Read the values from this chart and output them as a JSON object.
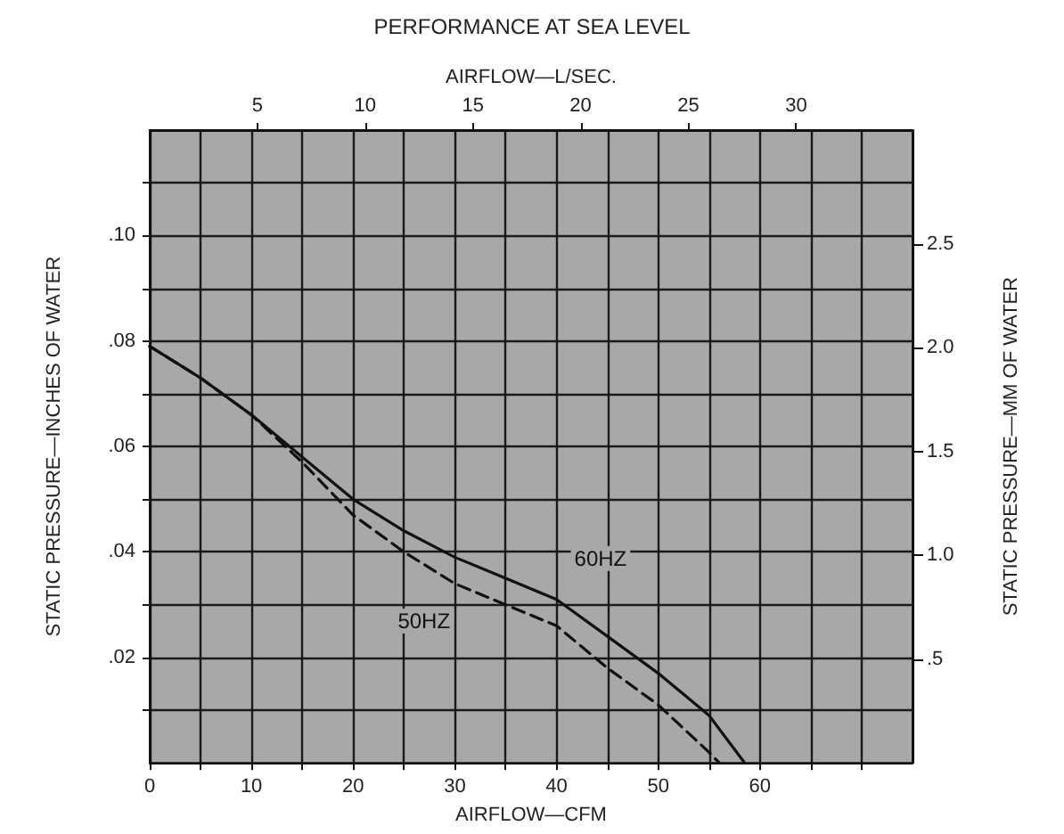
{
  "chart_data": {
    "type": "line",
    "title": "PERFORMANCE AT SEA LEVEL",
    "x2label": "AIRFLOW—L/SEC.",
    "xlabel": "AIRFLOW—CFM",
    "ylabel": "STATIC PRESSURE—INCHES OF WATER",
    "y2label": "STATIC PRESSURE—MM OF WATER",
    "xlim": [
      0,
      75
    ],
    "xticks": [
      0,
      {
        "value": 5,
        "label": null
      },
      10,
      {
        "value": 15,
        "label": null
      },
      20,
      {
        "value": 25,
        "label": null
      },
      30,
      {
        "value": 35,
        "label": null
      },
      40,
      {
        "value": 45,
        "label": null
      },
      50,
      {
        "value": 55,
        "label": null
      },
      60,
      {
        "value": 65,
        "label": null
      },
      {
        "value": 70,
        "label": null
      }
    ],
    "x2lim": [
      0,
      35.4
    ],
    "x2ticks": [
      5,
      10,
      15,
      20,
      25,
      30
    ],
    "ylim": [
      0,
      0.12
    ],
    "yticks": [
      {
        "value": 0.01,
        "label": null
      },
      {
        "value": 0.02,
        "label": ".02"
      },
      {
        "value": 0.03,
        "label": null
      },
      {
        "value": 0.04,
        "label": ".04"
      },
      {
        "value": 0.05,
        "label": null
      },
      {
        "value": 0.06,
        "label": ".06"
      },
      {
        "value": 0.07,
        "label": null
      },
      {
        "value": 0.08,
        "label": ".08"
      },
      {
        "value": 0.09,
        "label": null
      },
      {
        "value": 0.1,
        "label": ".10"
      },
      {
        "value": 0.11,
        "label": null
      }
    ],
    "y2lim": [
      0,
      3.048
    ],
    "y2ticks": [
      {
        "value": 0.5,
        "label": ".5"
      },
      {
        "value": 1,
        "label": "1.0"
      },
      {
        "value": 1.5,
        "label": "1.5"
      },
      {
        "value": 2,
        "label": "2.0"
      },
      {
        "value": 2.5,
        "label": "2.5"
      }
    ],
    "grid": true,
    "legend": false,
    "marker": "none",
    "series": [
      {
        "name": "60HZ",
        "color": "#111111",
        "line_style": "solid",
        "x": [
          0,
          5,
          10,
          15,
          20,
          25,
          30,
          35,
          40,
          45,
          50,
          55,
          58.5
        ],
        "values": [
          0.079,
          0.073,
          0.066,
          0.058,
          0.05,
          0.044,
          0.039,
          0.035,
          0.031,
          0.024,
          0.017,
          0.009,
          0
        ]
      },
      {
        "name": "50HZ",
        "color": "#111111",
        "line_style": "dashed",
        "x": [
          0,
          5,
          10,
          15,
          20,
          25,
          30,
          35,
          40,
          45,
          50,
          55,
          56
        ],
        "values": [
          0.079,
          0.073,
          0.066,
          0.057,
          0.047,
          0.04,
          0.034,
          0.03,
          0.026,
          0.018,
          0.011,
          0.002,
          0
        ]
      }
    ]
  }
}
